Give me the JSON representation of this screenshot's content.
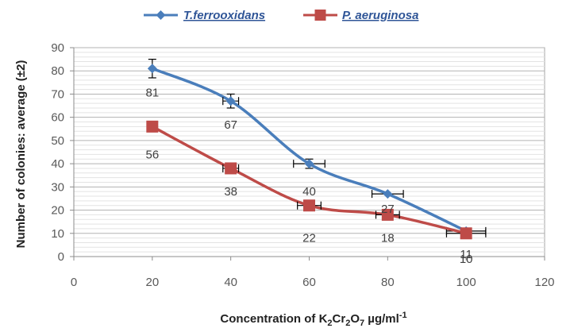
{
  "chart_data": {
    "type": "line",
    "title": "",
    "xlabel": {
      "prefix": "Concentration of K",
      "sub1": "2",
      "mid1": "Cr",
      "sub2": "2",
      "mid2": "O",
      "sub3": "7",
      "suffix": " µg/ml",
      "sup": "-1"
    },
    "ylabel": "Number of colonies: average (±2)",
    "xlim": [
      0,
      120
    ],
    "ylim": [
      0,
      90
    ],
    "x_ticks": [
      0,
      20,
      40,
      60,
      80,
      100,
      120
    ],
    "y_ticks": [
      0,
      10,
      20,
      30,
      40,
      50,
      60,
      70,
      80,
      90
    ],
    "grid": "horizontal",
    "legend_position": "top",
    "series": [
      {
        "name": "T.ferrooxidans",
        "color": "#4a7ebb",
        "marker": "diamond",
        "x": [
          20,
          40,
          60,
          80,
          100
        ],
        "y": [
          81,
          67,
          40,
          27,
          11
        ],
        "labels": [
          "81",
          "67",
          "40",
          "27",
          "11"
        ],
        "yerr": [
          4,
          3,
          2,
          0,
          0
        ],
        "xerr": [
          0,
          2,
          4,
          4,
          5
        ]
      },
      {
        "name": "P. aeruginosa",
        "color": "#be4b48",
        "marker": "square",
        "x": [
          20,
          40,
          60,
          80,
          100
        ],
        "y": [
          56,
          38,
          22,
          18,
          10
        ],
        "labels": [
          "56",
          "38",
          "22",
          "18",
          "10"
        ],
        "yerr": [
          2,
          0,
          0,
          0,
          0
        ],
        "xerr": [
          0,
          2,
          3,
          3,
          5
        ]
      }
    ]
  }
}
